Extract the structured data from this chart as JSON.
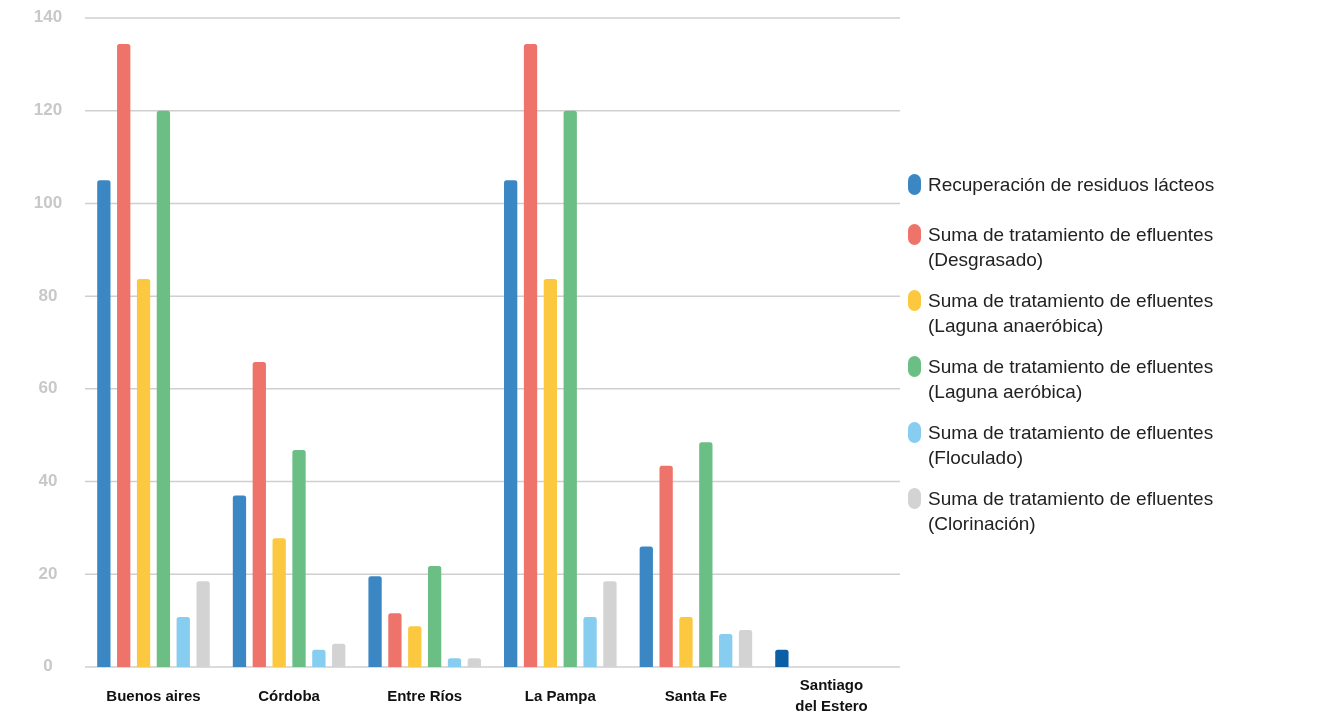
{
  "chart_data": {
    "type": "bar",
    "categories": [
      "Buenos aires",
      "Córdoba",
      "Entre Ríos",
      "La Pampa",
      "Santa Fe",
      "Santiago del Estero"
    ],
    "series": [
      {
        "name": "Recuperación de residuos lácteos",
        "color": "#3a87c4",
        "colors": [
          "#3a87c4",
          "#3a87c4",
          "#3a87c4",
          "#3a87c4",
          "#3a87c4",
          "#0b5fa5"
        ],
        "values": [
          105,
          37,
          19.6,
          105,
          26,
          3.7
        ]
      },
      {
        "name": "Suma de tratamiento de efluentes (Desgrasado)",
        "color": "#ee746b",
        "values": [
          134.4,
          65.8,
          11.6,
          134.4,
          43.4,
          null
        ]
      },
      {
        "name": "Suma de tratamiento de efluentes (Laguna anaeróbica)",
        "color": "#fbc840",
        "values": [
          83.7,
          27.8,
          8.8,
          83.7,
          10.8,
          null
        ]
      },
      {
        "name": "Suma de tratamiento de efluentes (Laguna aeróbica)",
        "color": "#6cbf84",
        "values": [
          120,
          46.8,
          21.8,
          120,
          48.5,
          null
        ]
      },
      {
        "name": "Suma de tratamiento de efluentes (Floculado)",
        "color": "#86cdf0",
        "values": [
          10.8,
          3.7,
          1.9,
          10.8,
          7.1,
          null
        ]
      },
      {
        "name": "Suma de tratamiento de efluentes (Clorinación)",
        "color": "#d3d3d3",
        "values": [
          18.5,
          5,
          1.9,
          18.5,
          8,
          null
        ]
      }
    ],
    "ylim": [
      0,
      140
    ],
    "yticks": [
      0,
      20,
      40,
      60,
      80,
      100,
      120,
      140
    ],
    "grid": "y",
    "legend": "right"
  }
}
